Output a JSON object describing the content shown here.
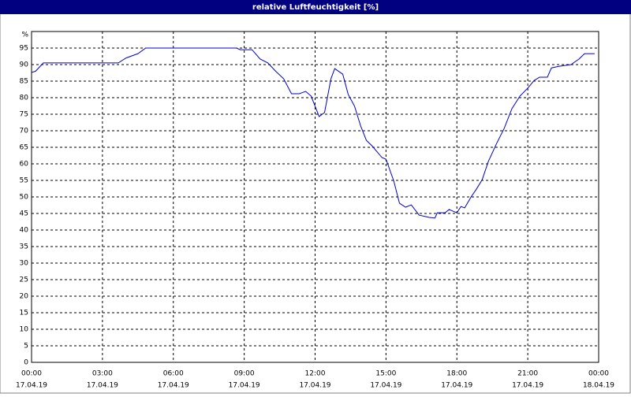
{
  "chart_data": {
    "type": "line",
    "title": "relative Luftfeuchtigkeit [%]",
    "y_unit_label": "%",
    "xlim": [
      0,
      24
    ],
    "ylim": [
      0,
      100
    ],
    "grid": true,
    "xticks": [
      {
        "value": 0,
        "label": "00:00"
      },
      {
        "value": 3,
        "label": "03:00"
      },
      {
        "value": 6,
        "label": "06:00"
      },
      {
        "value": 9,
        "label": "09:00"
      },
      {
        "value": 12,
        "label": "12:00"
      },
      {
        "value": 15,
        "label": "15:00"
      },
      {
        "value": 18,
        "label": "18:00"
      },
      {
        "value": 21,
        "label": "21:00"
      },
      {
        "value": 24,
        "label": "00:00"
      }
    ],
    "xtick_dates": [
      "17.04.19",
      "17.04.19",
      "17.04.19",
      "17.04.19",
      "17.04.19",
      "17.04.19",
      "17.04.19",
      "17.04.19",
      "18.04.19"
    ],
    "yticks": [
      0,
      5,
      10,
      15,
      20,
      25,
      30,
      35,
      40,
      45,
      50,
      55,
      60,
      65,
      70,
      75,
      80,
      85,
      90,
      95
    ],
    "series": [
      {
        "color": "#0000cc",
        "x": [
          0,
          0.17,
          0.5,
          3.67,
          4,
          4.5,
          4.83,
          8.67,
          8.83,
          9.33,
          9.67,
          10,
          10.33,
          10.67,
          11,
          11.33,
          11.6,
          11.83,
          12.17,
          12.4,
          12.67,
          12.83,
          13.17,
          13.4,
          13.67,
          13.93,
          14.17,
          14.4,
          14.83,
          15,
          15.33,
          15.57,
          15.83,
          16.07,
          16.4,
          16.83,
          17.07,
          17.17,
          17.5,
          17.67,
          18,
          18.17,
          18.33,
          18.6,
          18.83,
          19.07,
          19.33,
          19.67,
          20,
          20.33,
          20.67,
          21,
          21.27,
          21.5,
          21.83,
          22,
          22.33,
          22.83,
          23.17,
          23.4,
          23.83
        ],
        "values": [
          87.6,
          88,
          90.5,
          90.5,
          92,
          93.3,
          95,
          95,
          94.5,
          94.5,
          91.7,
          90.5,
          88,
          85.7,
          81.2,
          81.2,
          81.9,
          80.5,
          74.3,
          75.5,
          85.7,
          88.8,
          87.1,
          81,
          77.4,
          71.4,
          67.1,
          65.5,
          61.9,
          61.4,
          54.8,
          48.1,
          46.9,
          47.6,
          44.5,
          43.8,
          43.6,
          45.2,
          45.2,
          46.2,
          45.2,
          47.1,
          46.7,
          50,
          52.4,
          55.2,
          60.7,
          66,
          70.7,
          76.7,
          80.5,
          82.9,
          85.2,
          86.2,
          86.2,
          89,
          89.5,
          90,
          91.7,
          93.3,
          93.3
        ]
      }
    ]
  }
}
